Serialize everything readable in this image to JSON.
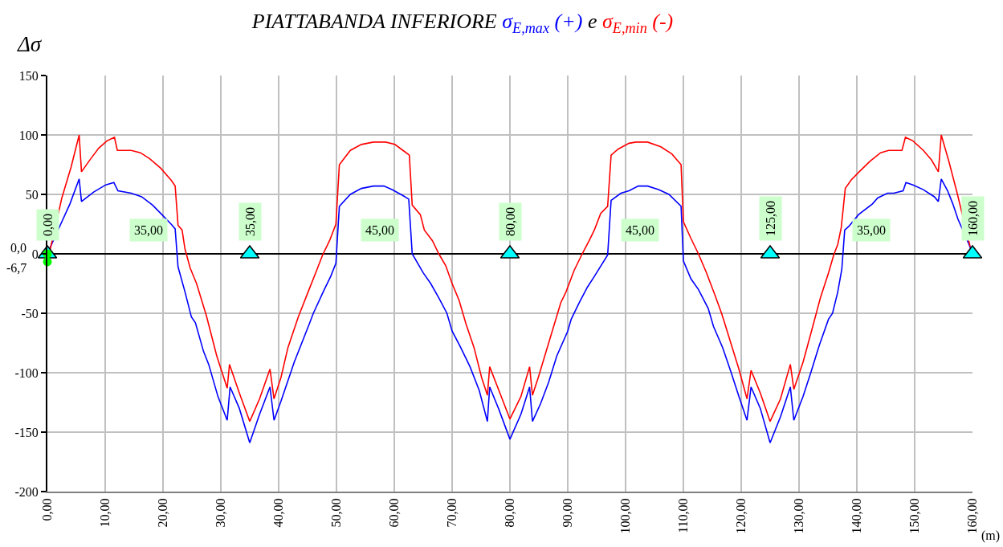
{
  "chart_data": {
    "type": "line",
    "title": "PIATTABANDA INFERIORE σ$_{E,max}$ (+) e σ$_{E,min}$ (-)",
    "xlabel": "(m)",
    "ylabel": "Δσ",
    "xlim": [
      0,
      160
    ],
    "xticks": [
      {
        "value": 0,
        "label": "0,00"
      },
      {
        "value": 10,
        "label": "10,00"
      },
      {
        "value": 20,
        "label": "20,00"
      },
      {
        "value": 30,
        "label": "30,00"
      },
      {
        "value": 40,
        "label": "40,00"
      },
      {
        "value": 50,
        "label": "50,00"
      },
      {
        "value": 60,
        "label": "60,00"
      },
      {
        "value": 70,
        "label": "70,00"
      },
      {
        "value": 80,
        "label": "80,00"
      },
      {
        "value": 90,
        "label": "90,00"
      },
      {
        "value": 100,
        "label": "100,00"
      },
      {
        "value": 110,
        "label": "110,00"
      },
      {
        "value": 120,
        "label": "120,00"
      },
      {
        "value": 130,
        "label": "130,00"
      },
      {
        "value": 140,
        "label": "140,00"
      },
      {
        "value": 150,
        "label": "150,00"
      },
      {
        "value": 160,
        "label": "160,00"
      }
    ],
    "ylim": [
      -200,
      150
    ],
    "yticks": [
      -200,
      -150,
      -100,
      -50,
      0,
      50,
      100,
      150
    ],
    "grid": true,
    "annotations": [
      "35,00",
      "45,00",
      "45,00",
      "35,00",
      {
        "text": "0,00",
        "x": 0,
        "y": 0
      },
      {
        "text": "35,00",
        "x": 35,
        "y": 0
      },
      {
        "text": "80,00",
        "x": 80,
        "y": 0
      },
      {
        "text": "125,00",
        "x": 125,
        "y": 0
      },
      {
        "text": "160,00",
        "x": 160,
        "y": 0
      }
    ],
    "series": [
      {
        "color": "#0000ff",
        "x": [
          0,
          2.5,
          3.9,
          5.5,
          5.9,
          8,
          10.1,
          11.5,
          12.2,
          14.5,
          16.3,
          18.2,
          19.8,
          21.4,
          22.1,
          22.6,
          23.8,
          24.9,
          25.6,
          27,
          27.9,
          29.5,
          31.1,
          31.6,
          33.2,
          35,
          36.7,
          38.5,
          39.2,
          40.4,
          42.7,
          45.3,
          46,
          47.8,
          49,
          49.9,
          50.5,
          52.4,
          54.3,
          56.4,
          58.2,
          59.6,
          61.5,
          62.5,
          63.1,
          65,
          66.3,
          67.7,
          69.1,
          70,
          71.4,
          73.1,
          74.7,
          76.1,
          76.5,
          78.1,
          80,
          81.9,
          83.4,
          83.9,
          85.3,
          86.7,
          88.1,
          90,
          90.6,
          92,
          93.4,
          94.6,
          96.9,
          97.5,
          99.2,
          100.6,
          102.2,
          103.8,
          105.7,
          107.5,
          109.6,
          110,
          111.3,
          112.6,
          114.3,
          115.2,
          116.8,
          118.2,
          119.6,
          121,
          121.7,
          123.3,
          125,
          126.8,
          128.5,
          129.1,
          130.7,
          132.1,
          133.5,
          135.1,
          135.8,
          136.7,
          137.4,
          137.9,
          138.6,
          140.3,
          142.7,
          143.6,
          145.3,
          146.4,
          148,
          148.5,
          149.7,
          151.5,
          153.4,
          154.1,
          154.6,
          155.7,
          156.6,
          157.5,
          159.4,
          160
        ],
        "values": [
          0,
          27,
          42,
          63,
          44,
          52,
          58,
          60,
          53,
          51,
          48,
          41,
          33,
          25,
          21,
          -11,
          -32,
          -53,
          -58,
          -82,
          -93,
          -120,
          -140,
          -112,
          -130,
          -159,
          -135,
          -112,
          -140,
          -124,
          -91,
          -59,
          -50,
          -31,
          -19,
          -8,
          40,
          50,
          55,
          57,
          57,
          54,
          49,
          46,
          0,
          -16,
          -25,
          -37,
          -50,
          -65,
          -78,
          -95,
          -115,
          -141,
          -112,
          -131,
          -156,
          -135,
          -112,
          -141,
          -126,
          -108,
          -86,
          -65,
          -55,
          -41,
          -28,
          -19,
          -1,
          45,
          51,
          53,
          57,
          57,
          54,
          50,
          40,
          -6,
          -21,
          -30,
          -46,
          -61,
          -79,
          -99,
          -120,
          -140,
          -112,
          -130,
          -159,
          -137,
          -112,
          -140,
          -120,
          -99,
          -77,
          -55,
          -50,
          -32,
          -13,
          20,
          23,
          33,
          42,
          47,
          51,
          51,
          53,
          60,
          58,
          54,
          48,
          44,
          63,
          53,
          42,
          29,
          8,
          0
        ]
      },
      {
        "color": "#ff0000",
        "x": [
          0,
          2.5,
          4.1,
          5.5,
          5.9,
          7.5,
          8.9,
          10.3,
          11.6,
          12.1,
          14.5,
          16.1,
          17.7,
          19.6,
          21.4,
          22.1,
          22.6,
          23.3,
          23.8,
          24.7,
          25.8,
          27.5,
          29.3,
          31.1,
          31.5,
          33.2,
          35,
          36.7,
          38.5,
          39.2,
          40.4,
          41.6,
          43.4,
          45.1,
          46.4,
          47.6,
          48.8,
          49.9,
          50.5,
          52.4,
          54.3,
          56.4,
          58.5,
          60.1,
          61.5,
          62.6,
          63.1,
          64.5,
          65.2,
          66.6,
          67.7,
          68.9,
          70,
          71.2,
          72.4,
          73.8,
          75.1,
          76.1,
          76.5,
          78.1,
          80,
          81.9,
          83.4,
          83.9,
          84.9,
          86.7,
          88.8,
          89.7,
          91.1,
          92.5,
          93.7,
          94.6,
          95.7,
          96.9,
          97.5,
          98.7,
          100.6,
          101.8,
          103.8,
          106.1,
          108,
          109.6,
          110,
          111.3,
          112.6,
          114,
          115.4,
          116.6,
          117,
          118.2,
          119.6,
          121,
          121.7,
          123.3,
          125,
          126.8,
          128.5,
          129.1,
          130.7,
          132.1,
          133.7,
          135.1,
          136,
          136.7,
          137.3,
          138,
          139,
          140.4,
          142.3,
          144.1,
          145.5,
          147.8,
          148.4,
          149.7,
          151.5,
          152.9,
          154.1,
          154.6,
          155.9,
          157.3,
          159.6
        ],
        "values": [
          -6.7,
          47,
          73,
          100,
          69,
          80,
          89,
          95,
          98,
          87,
          87,
          85,
          80,
          72,
          62,
          57,
          24,
          20,
          4,
          -12,
          -25,
          -52,
          -86,
          -113,
          -93,
          -117,
          -141,
          -122,
          -97,
          -122,
          -104,
          -79,
          -53,
          -32,
          -16,
          -1,
          11,
          25,
          75,
          87,
          92,
          94,
          94,
          92,
          87,
          83,
          41,
          33,
          20,
          11,
          0,
          -10,
          -25,
          -39,
          -59,
          -79,
          -104,
          -119,
          -95,
          -115,
          -139,
          -120,
          -95,
          -119,
          -104,
          -75,
          -41,
          -32,
          -14,
          0,
          11,
          20,
          34,
          40,
          83,
          88,
          93,
          94,
          94,
          90,
          84,
          75,
          27,
          13,
          0,
          -16,
          -34,
          -50,
          -56,
          -75,
          -97,
          -122,
          -98,
          -117,
          -141,
          -122,
          -93,
          -114,
          -91,
          -66,
          -37,
          -16,
          -1,
          8,
          22,
          55,
          62,
          69,
          78,
          85,
          87,
          87,
          98,
          95,
          87,
          79,
          69,
          100,
          78,
          52,
          6
        ]
      },
      {
        "type": "scatter",
        "marker": "triangle",
        "color": "#00ffff",
        "x": [
          0,
          35,
          80,
          125,
          160
        ],
        "values": [
          0,
          0,
          0,
          0,
          0
        ]
      },
      {
        "type": "scatter",
        "marker": "circle",
        "color": "#00ff00",
        "x": [
          0,
          0
        ],
        "values": [
          0,
          -6.7
        ],
        "value_labels": [
          "0,0",
          "-6,7"
        ]
      }
    ]
  }
}
